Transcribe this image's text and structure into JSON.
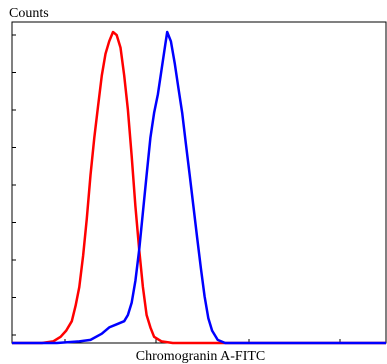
{
  "chart_data": {
    "type": "line",
    "title": "",
    "xlabel": "Chromogranin A-FITC",
    "ylabel": "Counts",
    "xlim": [
      0,
      10
    ],
    "ylim": [
      0,
      1
    ],
    "grid": false,
    "legend": "none",
    "series": [
      {
        "color": "#ff0000",
        "points": [
          [
            0.0,
            0.0
          ],
          [
            0.8,
            0.0
          ],
          [
            1.1,
            0.005
          ],
          [
            1.3,
            0.02
          ],
          [
            1.45,
            0.04
          ],
          [
            1.6,
            0.07
          ],
          [
            1.7,
            0.12
          ],
          [
            1.8,
            0.18
          ],
          [
            1.9,
            0.28
          ],
          [
            2.0,
            0.4
          ],
          [
            2.1,
            0.54
          ],
          [
            2.2,
            0.66
          ],
          [
            2.3,
            0.76
          ],
          [
            2.4,
            0.86
          ],
          [
            2.5,
            0.93
          ],
          [
            2.6,
            0.97
          ],
          [
            2.7,
            1.0
          ],
          [
            2.8,
            0.99
          ],
          [
            2.9,
            0.95
          ],
          [
            3.0,
            0.86
          ],
          [
            3.1,
            0.75
          ],
          [
            3.2,
            0.6
          ],
          [
            3.3,
            0.44
          ],
          [
            3.4,
            0.3
          ],
          [
            3.5,
            0.18
          ],
          [
            3.6,
            0.09
          ],
          [
            3.7,
            0.05
          ],
          [
            3.8,
            0.02
          ],
          [
            4.0,
            0.005
          ],
          [
            4.3,
            0.0
          ],
          [
            10.0,
            0.0
          ]
        ]
      },
      {
        "color": "#0000ff",
        "points": [
          [
            0.0,
            0.0
          ],
          [
            1.2,
            0.0
          ],
          [
            1.8,
            0.005
          ],
          [
            2.1,
            0.01
          ],
          [
            2.4,
            0.03
          ],
          [
            2.6,
            0.05
          ],
          [
            2.8,
            0.06
          ],
          [
            3.0,
            0.07
          ],
          [
            3.1,
            0.09
          ],
          [
            3.2,
            0.13
          ],
          [
            3.3,
            0.2
          ],
          [
            3.4,
            0.3
          ],
          [
            3.5,
            0.42
          ],
          [
            3.6,
            0.54
          ],
          [
            3.7,
            0.66
          ],
          [
            3.8,
            0.74
          ],
          [
            3.9,
            0.8
          ],
          [
            4.0,
            0.88
          ],
          [
            4.1,
            0.96
          ],
          [
            4.15,
            1.0
          ],
          [
            4.25,
            0.97
          ],
          [
            4.35,
            0.9
          ],
          [
            4.45,
            0.82
          ],
          [
            4.55,
            0.74
          ],
          [
            4.65,
            0.64
          ],
          [
            4.75,
            0.54
          ],
          [
            4.85,
            0.44
          ],
          [
            4.95,
            0.34
          ],
          [
            5.05,
            0.24
          ],
          [
            5.15,
            0.15
          ],
          [
            5.25,
            0.08
          ],
          [
            5.35,
            0.04
          ],
          [
            5.5,
            0.01
          ],
          [
            5.7,
            0.0
          ],
          [
            10.0,
            0.0
          ]
        ]
      }
    ]
  }
}
